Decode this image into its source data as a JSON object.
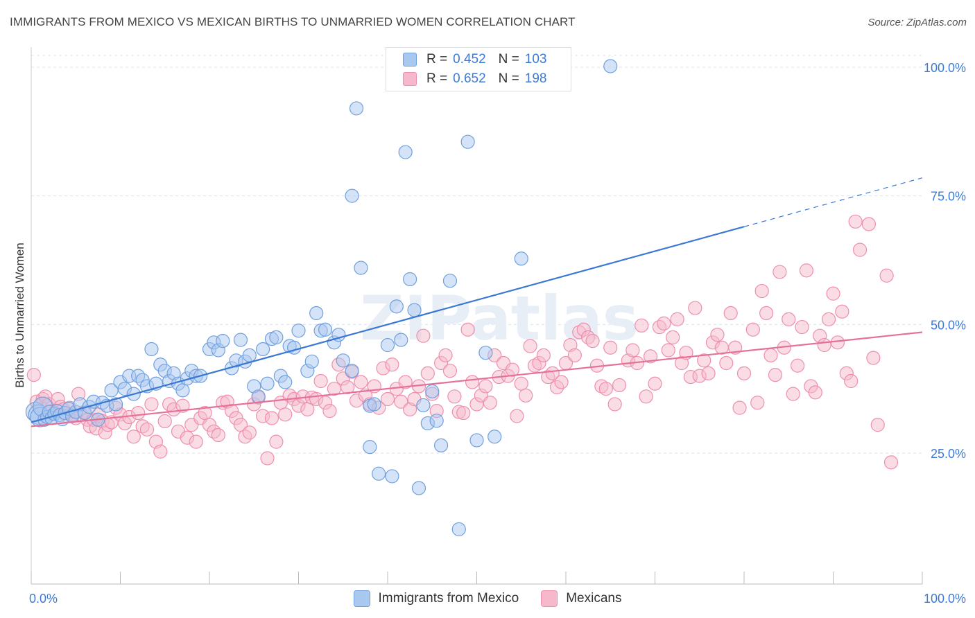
{
  "header": {
    "title": "IMMIGRANTS FROM MEXICO VS MEXICAN BIRTHS TO UNMARRIED WOMEN CORRELATION CHART",
    "source": "Source: ZipAtlas.com"
  },
  "watermark": "ZIPatlas",
  "legend": {
    "rows": [
      {
        "r_label": "R =",
        "r_value": "0.452",
        "n_label": "N =",
        "n_value": "103",
        "color": "#a9c8f0"
      },
      {
        "r_label": "R =",
        "r_value": "0.652",
        "n_label": "N =",
        "n_value": "198",
        "color": "#f6b9cc"
      }
    ]
  },
  "chart_data": {
    "type": "scatter",
    "title": "IMMIGRANTS FROM MEXICO VS MEXICAN BIRTHS TO UNMARRIED WOMEN CORRELATION CHART",
    "xlabel": "",
    "ylabel": "Births to Unmarried Women",
    "xlim": [
      0,
      100
    ],
    "ylim": [
      0,
      104
    ],
    "x_tick_labels": [
      "0.0%",
      "100.0%"
    ],
    "y_ticks": [
      25,
      50,
      75,
      100
    ],
    "y_tick_labels": [
      "25.0%",
      "50.0%",
      "75.0%",
      "100.0%"
    ],
    "grid": true,
    "legend_position": "top-center",
    "series": [
      {
        "name": "Immigrants from Mexico",
        "color": "#6fa0de",
        "fill": "#a9c8f0",
        "trend": {
          "x0": 0,
          "y0": 31.0,
          "x1": 80,
          "y1": 69.0,
          "dash_to_x": 100,
          "dash_to_y": 78.5
        },
        "points": [
          [
            0.5,
            33
          ],
          [
            0.8,
            32.5
          ],
          [
            1,
            32
          ],
          [
            1.3,
            34
          ],
          [
            1.5,
            31.5
          ],
          [
            1.8,
            32
          ],
          [
            2,
            33
          ],
          [
            2.3,
            31.8
          ],
          [
            2.6,
            32.6
          ],
          [
            2.9,
            33.2
          ],
          [
            3.2,
            32.4
          ],
          [
            3.5,
            31.6
          ],
          [
            3.8,
            32.8
          ],
          [
            4.2,
            33.6
          ],
          [
            4.6,
            32.2
          ],
          [
            5,
            33
          ],
          [
            5.5,
            34.5
          ],
          [
            6,
            32.8
          ],
          [
            6.5,
            34
          ],
          [
            7,
            35
          ],
          [
            7.5,
            31.5
          ],
          [
            8,
            34.8
          ],
          [
            8.5,
            34.2
          ],
          [
            9,
            37.2
          ],
          [
            9.5,
            34.5
          ],
          [
            10,
            38.8
          ],
          [
            10.5,
            37.5
          ],
          [
            11,
            40
          ],
          [
            11.5,
            36.5
          ],
          [
            12,
            40
          ],
          [
            12.5,
            39.2
          ],
          [
            13,
            38
          ],
          [
            13.5,
            45.2
          ],
          [
            14,
            38.5
          ],
          [
            14.5,
            42.2
          ],
          [
            15,
            41
          ],
          [
            15.5,
            39
          ],
          [
            16,
            40.5
          ],
          [
            16.5,
            38.5
          ],
          [
            17,
            37.2
          ],
          [
            17.5,
            39.5
          ],
          [
            18,
            41
          ],
          [
            18.5,
            40
          ],
          [
            19,
            40
          ],
          [
            20,
            45.2
          ],
          [
            20.5,
            46.5
          ],
          [
            21,
            45
          ],
          [
            21.5,
            46.8
          ],
          [
            22.5,
            41.5
          ],
          [
            23,
            43
          ],
          [
            23.5,
            47
          ],
          [
            24,
            42.8
          ],
          [
            24.5,
            44
          ],
          [
            25,
            38
          ],
          [
            25.5,
            36
          ],
          [
            26,
            45.2
          ],
          [
            26.5,
            38.5
          ],
          [
            27,
            47.2
          ],
          [
            27.5,
            47.5
          ],
          [
            28,
            40
          ],
          [
            28.5,
            38.8
          ],
          [
            29,
            45.8
          ],
          [
            29.5,
            45.5
          ],
          [
            30,
            48.8
          ],
          [
            31,
            41
          ],
          [
            31.5,
            42.8
          ],
          [
            32,
            52.2
          ],
          [
            32.5,
            48.8
          ],
          [
            33,
            49
          ],
          [
            34,
            46.5
          ],
          [
            34.5,
            48
          ],
          [
            35,
            43
          ],
          [
            36,
            41
          ],
          [
            36.5,
            92
          ],
          [
            36,
            75
          ],
          [
            37,
            61
          ],
          [
            38,
            34.2
          ],
          [
            38.5,
            34.5
          ],
          [
            38,
            26.2
          ],
          [
            39,
            21
          ],
          [
            40,
            46
          ],
          [
            40.5,
            20.5
          ],
          [
            41,
            53.5
          ],
          [
            41.5,
            47
          ],
          [
            42,
            83.5
          ],
          [
            42.5,
            58.8
          ],
          [
            43,
            52.8
          ],
          [
            43.5,
            18.2
          ],
          [
            44,
            34.3
          ],
          [
            44.5,
            30.8
          ],
          [
            45,
            37
          ],
          [
            45.5,
            31.3
          ],
          [
            46,
            26.5
          ],
          [
            47,
            58.5
          ],
          [
            48,
            10.2
          ],
          [
            49,
            85.5
          ],
          [
            50,
            27.5
          ],
          [
            51,
            44.5
          ],
          [
            52,
            28.2
          ],
          [
            55,
            62.8
          ],
          [
            65,
            100.2
          ],
          [
            50.5,
            100.5
          ]
        ]
      },
      {
        "name": "Mexicans",
        "color": "#ee8fae",
        "fill": "#f6b9cc",
        "trend": {
          "x0": 0,
          "y0": 30.2,
          "x1": 100,
          "y1": 48.5
        },
        "points": [
          [
            0.3,
            40.2
          ],
          [
            0.6,
            35
          ],
          [
            1,
            34.2
          ],
          [
            1.3,
            35.5
          ],
          [
            1.6,
            36
          ],
          [
            2,
            34.5
          ],
          [
            2.3,
            33.2
          ],
          [
            2.6,
            32.8
          ],
          [
            3,
            35.5
          ],
          [
            3.3,
            34
          ],
          [
            3.6,
            33.5
          ],
          [
            4,
            32.2
          ],
          [
            4.3,
            33.8
          ],
          [
            4.6,
            32.5
          ],
          [
            5,
            31.8
          ],
          [
            5.3,
            36.5
          ],
          [
            5.6,
            32.5
          ],
          [
            6,
            33
          ],
          [
            6.3,
            31.5
          ],
          [
            6.6,
            30.2
          ],
          [
            7,
            31.5
          ],
          [
            7.3,
            29.8
          ],
          [
            7.6,
            32.5
          ],
          [
            8,
            31.2
          ],
          [
            8.3,
            29
          ],
          [
            8.6,
            30.5
          ],
          [
            9,
            31
          ],
          [
            9.5,
            33.8
          ],
          [
            10,
            32.5
          ],
          [
            10.5,
            30.8
          ],
          [
            11,
            32
          ],
          [
            11.5,
            28.2
          ],
          [
            12,
            32.8
          ],
          [
            12.5,
            30.2
          ],
          [
            13,
            29.6
          ],
          [
            13.5,
            34.5
          ],
          [
            14,
            27.2
          ],
          [
            14.5,
            25.3
          ],
          [
            15,
            31.2
          ],
          [
            15.5,
            34.5
          ],
          [
            16,
            33.5
          ],
          [
            16.5,
            29.2
          ],
          [
            17,
            34.2
          ],
          [
            17.5,
            28
          ],
          [
            18,
            30.5
          ],
          [
            18.5,
            27.2
          ],
          [
            19,
            31.8
          ],
          [
            19.5,
            32.8
          ],
          [
            20,
            30.5
          ],
          [
            20.5,
            29.2
          ],
          [
            21,
            28.5
          ],
          [
            21.5,
            34.8
          ],
          [
            22,
            35
          ],
          [
            22.5,
            33.2
          ],
          [
            23,
            31.8
          ],
          [
            23.5,
            30.5
          ],
          [
            24,
            28.2
          ],
          [
            24.5,
            29
          ],
          [
            25,
            34.5
          ],
          [
            25.5,
            35.8
          ],
          [
            26,
            32.2
          ],
          [
            26.5,
            24
          ],
          [
            27,
            31.8
          ],
          [
            27.5,
            27.2
          ],
          [
            28,
            34.8
          ],
          [
            28.5,
            32.5
          ],
          [
            29,
            36.2
          ],
          [
            29.5,
            35.5
          ],
          [
            30,
            34.2
          ],
          [
            30.5,
            36
          ],
          [
            31,
            33.5
          ],
          [
            31.5,
            35.8
          ],
          [
            32,
            35.5
          ],
          [
            32.5,
            39
          ],
          [
            33,
            34.8
          ],
          [
            33.5,
            33.2
          ],
          [
            34,
            37.5
          ],
          [
            34.5,
            42.2
          ],
          [
            35,
            39.5
          ],
          [
            35.5,
            37.8
          ],
          [
            36,
            40.8
          ],
          [
            36.5,
            35.2
          ],
          [
            37,
            38.8
          ],
          [
            37.5,
            36.2
          ],
          [
            38,
            34.5
          ],
          [
            38.5,
            38
          ],
          [
            39,
            33.8
          ],
          [
            39.5,
            41.5
          ],
          [
            40,
            35.5
          ],
          [
            40.5,
            42.2
          ],
          [
            41,
            37.5
          ],
          [
            41.5,
            35
          ],
          [
            42,
            38.8
          ],
          [
            42.5,
            33.5
          ],
          [
            43,
            35.5
          ],
          [
            43.5,
            38
          ],
          [
            44,
            47.8
          ],
          [
            44.5,
            40.5
          ],
          [
            45,
            36.5
          ],
          [
            45.5,
            33.2
          ],
          [
            46,
            42.5
          ],
          [
            46.5,
            44
          ],
          [
            47,
            41
          ],
          [
            47.5,
            36
          ],
          [
            48,
            33
          ],
          [
            48.5,
            32.8
          ],
          [
            49,
            49
          ],
          [
            49.5,
            38.8
          ],
          [
            50,
            34.5
          ],
          [
            50.5,
            36.2
          ],
          [
            51,
            38
          ],
          [
            51.5,
            34.8
          ],
          [
            52,
            44
          ],
          [
            52.5,
            39.8
          ],
          [
            53,
            42.5
          ],
          [
            53.5,
            40
          ],
          [
            54,
            41.2
          ],
          [
            54.5,
            32.2
          ],
          [
            55,
            38.5
          ],
          [
            55.5,
            36.2
          ],
          [
            56,
            45.8
          ],
          [
            56.5,
            42
          ],
          [
            57,
            42.5
          ],
          [
            57.5,
            44
          ],
          [
            58,
            39.8
          ],
          [
            58.5,
            40.5
          ],
          [
            59,
            37.8
          ],
          [
            59.5,
            38.8
          ],
          [
            60,
            42.5
          ],
          [
            60.5,
            46
          ],
          [
            61,
            44
          ],
          [
            61.5,
            48.5
          ],
          [
            62,
            49
          ],
          [
            62.5,
            47.5
          ],
          [
            63,
            46.8
          ],
          [
            63.5,
            42
          ],
          [
            64,
            38
          ],
          [
            64.5,
            37.5
          ],
          [
            65,
            45.5
          ],
          [
            65.5,
            34.5
          ],
          [
            66,
            38.2
          ],
          [
            67,
            43
          ],
          [
            67.5,
            45
          ],
          [
            68,
            42.5
          ],
          [
            68.5,
            49.8
          ],
          [
            69,
            36
          ],
          [
            69.5,
            43.8
          ],
          [
            70,
            38.5
          ],
          [
            70.5,
            49.5
          ],
          [
            71,
            50.2
          ],
          [
            71.5,
            45
          ],
          [
            72,
            47.5
          ],
          [
            72.5,
            51
          ],
          [
            73,
            42.5
          ],
          [
            73.5,
            44.5
          ],
          [
            74,
            39.8
          ],
          [
            74.5,
            53.2
          ],
          [
            75,
            40
          ],
          [
            75.5,
            43
          ],
          [
            76,
            40.5
          ],
          [
            76.5,
            46.5
          ],
          [
            77,
            48
          ],
          [
            77.5,
            45.5
          ],
          [
            78,
            42.5
          ],
          [
            78.5,
            52.2
          ],
          [
            79,
            45.5
          ],
          [
            79.5,
            33.8
          ],
          [
            80,
            40.5
          ],
          [
            81,
            49
          ],
          [
            81.5,
            34.8
          ],
          [
            82,
            56.5
          ],
          [
            82.5,
            52.2
          ],
          [
            83,
            44
          ],
          [
            83.5,
            40.2
          ],
          [
            84,
            60.2
          ],
          [
            84.5,
            45.5
          ],
          [
            85,
            51
          ],
          [
            85.5,
            36.5
          ],
          [
            86,
            42
          ],
          [
            86.5,
            49.5
          ],
          [
            87,
            60.5
          ],
          [
            87.5,
            38
          ],
          [
            88,
            36.8
          ],
          [
            88.5,
            47.8
          ],
          [
            89,
            46
          ],
          [
            89.5,
            51
          ],
          [
            90,
            56
          ],
          [
            90.5,
            46.5
          ],
          [
            91,
            52.5
          ],
          [
            91.5,
            40.5
          ],
          [
            92,
            39
          ],
          [
            92.5,
            70
          ],
          [
            93,
            64.5
          ],
          [
            94,
            69.5
          ],
          [
            94.5,
            43.5
          ],
          [
            95,
            30.5
          ],
          [
            96,
            59.5
          ],
          [
            96.5,
            23.2
          ]
        ]
      }
    ]
  },
  "bottom_legend": [
    {
      "label": "Immigrants from Mexico",
      "color": "#a9c8f0"
    },
    {
      "label": "Mexicans",
      "color": "#f6b9cc"
    }
  ]
}
